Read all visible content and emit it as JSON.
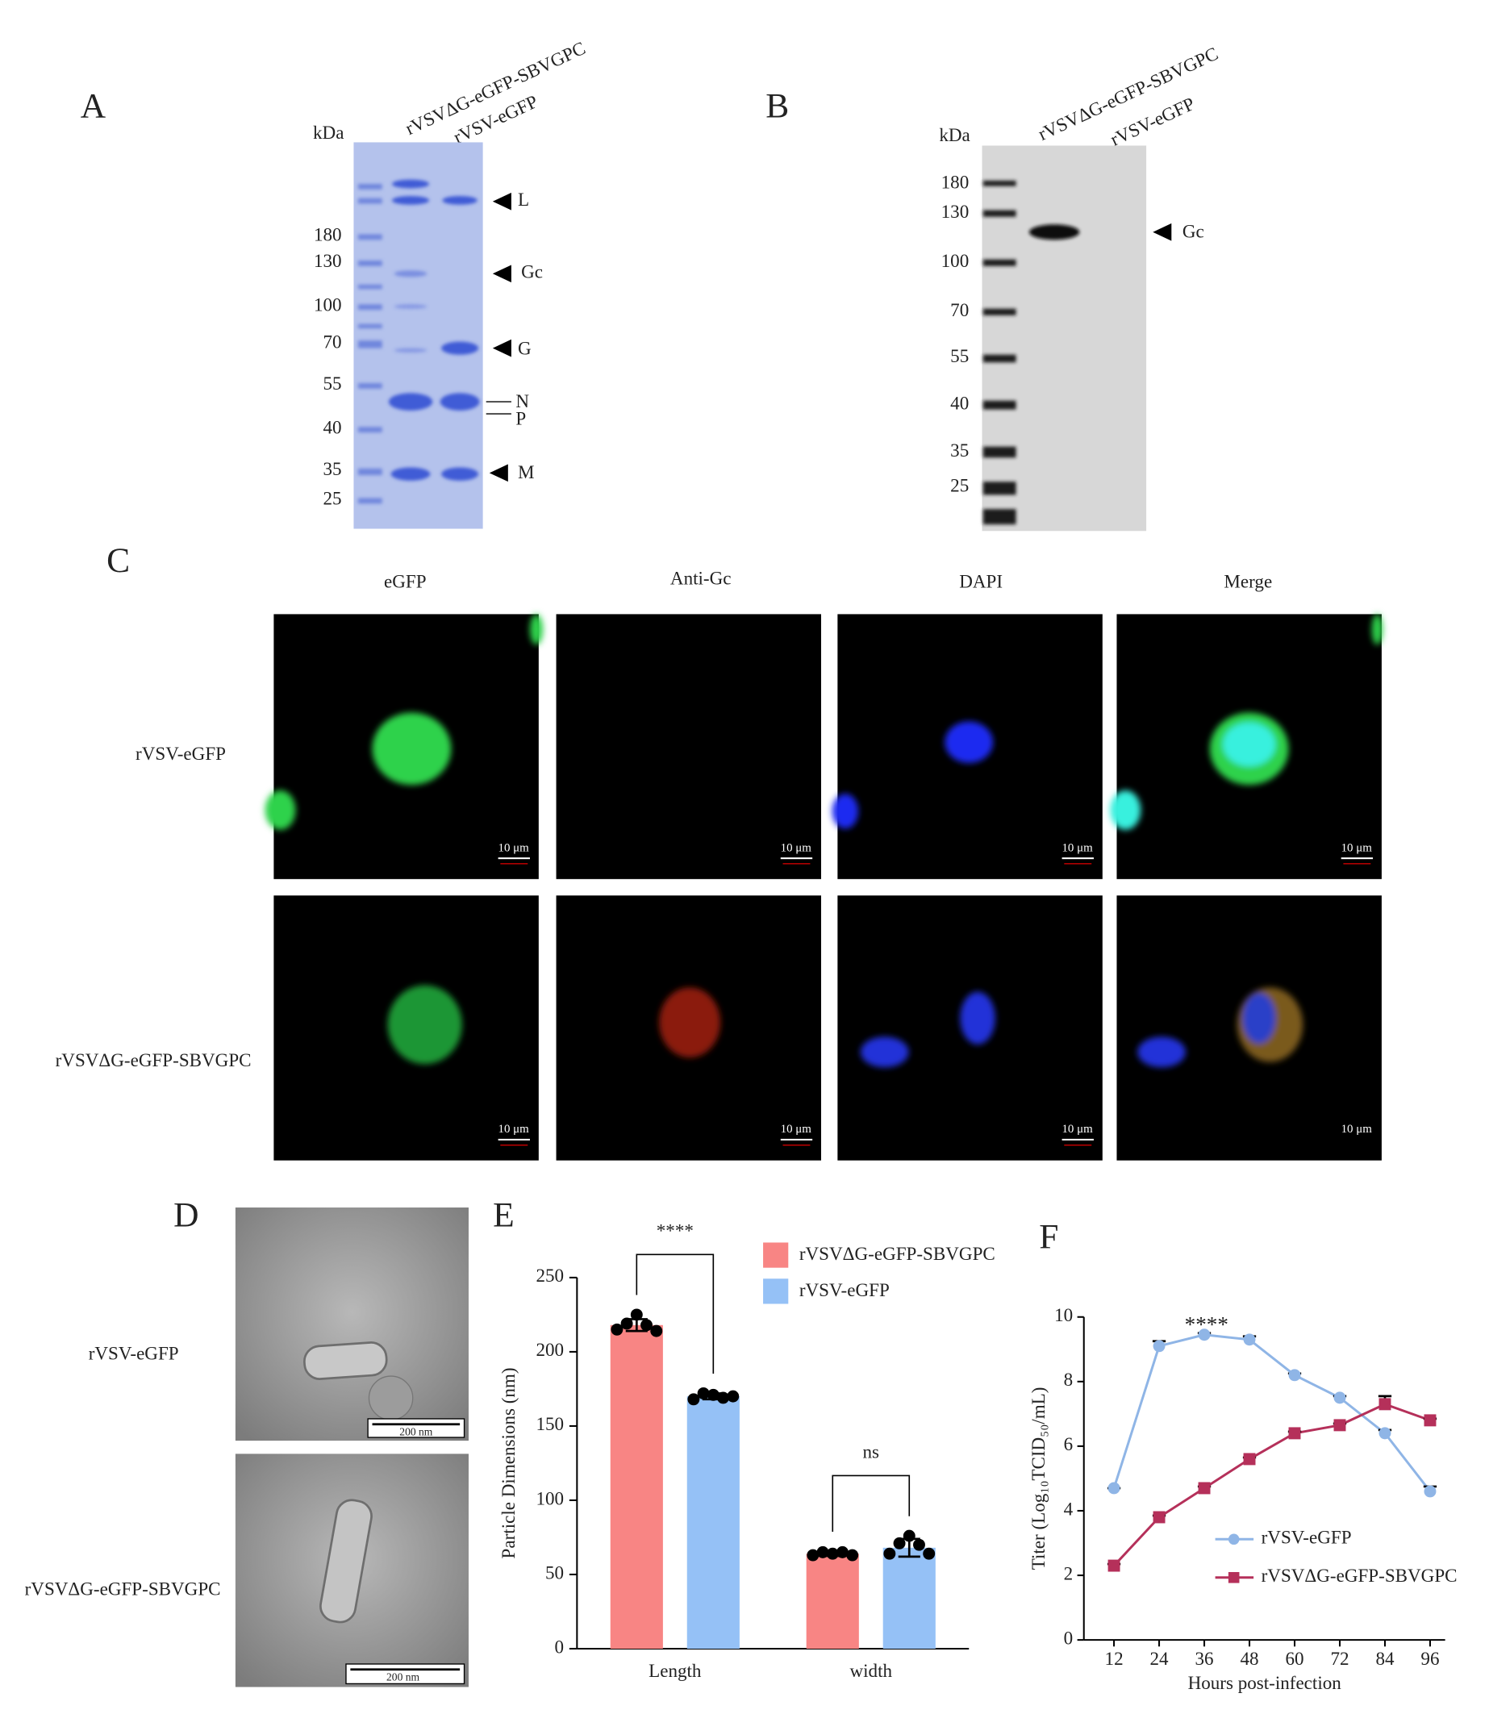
{
  "panel_a": {
    "label": "A",
    "unit": "kDa",
    "lanes": [
      "rVSVΔG-eGFP-SBVGPC",
      "rVSV-eGFP"
    ],
    "markers": [
      180,
      130,
      100,
      70,
      55,
      40,
      35,
      25
    ],
    "bands": [
      "L",
      "Gc",
      "G",
      "N",
      "P",
      "M"
    ]
  },
  "panel_b": {
    "label": "B",
    "unit": "kDa",
    "lanes": [
      "rVSVΔG-eGFP-SBVGPC",
      "rVSV-eGFP"
    ],
    "markers": [
      180,
      130,
      100,
      70,
      55,
      40,
      35,
      25
    ],
    "bands": [
      "Gc"
    ]
  },
  "panel_c": {
    "label": "C",
    "columns": [
      "eGFP",
      "Anti-Gc",
      "DAPI",
      "Merge"
    ],
    "rows": [
      "rVSV-eGFP",
      "rVSVΔG-eGFP-SBVGPC"
    ],
    "scale_bar": "10 μm"
  },
  "panel_d": {
    "label": "D",
    "rows": [
      "rVSV-eGFP",
      "rVSVΔG-eGFP-SBVGPC"
    ],
    "scale_bar": "200 nm"
  },
  "chart_data": [
    {
      "type": "bar",
      "label": "E",
      "ylabel": "Particle Dimensions (nm)",
      "categories": [
        "Length",
        "width"
      ],
      "series": [
        {
          "name": "rVSVΔG-eGFP-SBVGPC",
          "color": "#f88584",
          "values": [
            218,
            64
          ],
          "errors": [
            4,
            1.5
          ],
          "points": [
            [
              215,
              219,
              225,
              218,
              214
            ],
            [
              63,
              65,
              64,
              65,
              63
            ]
          ]
        },
        {
          "name": "rVSV-eGFP",
          "color": "#95c1f6",
          "values": [
            170,
            68
          ],
          "errors": [
            2,
            6
          ],
          "points": [
            [
              168,
              172,
              171,
              169,
              170
            ],
            [
              64,
              71,
              76,
              70,
              64
            ]
          ]
        }
      ],
      "ylim": [
        0,
        250
      ],
      "yticks": [
        0,
        50,
        100,
        150,
        200,
        250
      ],
      "annotations": [
        "****",
        "ns"
      ]
    },
    {
      "type": "line",
      "label": "F",
      "xlabel": "Hours post-infection",
      "ylabel": "Titer (Log₁₀TCID₅₀/mL)",
      "x": [
        12,
        24,
        36,
        48,
        60,
        72,
        84,
        96
      ],
      "xlim": [
        4,
        100
      ],
      "xticks": [
        12,
        24,
        36,
        48,
        60,
        72,
        84,
        96
      ],
      "ylim": [
        0,
        10
      ],
      "yticks": [
        0,
        2,
        4,
        6,
        8,
        10
      ],
      "series": [
        {
          "name": "rVSV-eGFP",
          "color": "#8fb5e6",
          "marker": "circle",
          "values": [
            4.7,
            9.1,
            9.45,
            9.3,
            8.2,
            7.5,
            6.4,
            4.6
          ],
          "errors": [
            0,
            0.15,
            0.05,
            0.1,
            0.05,
            0.05,
            0.1,
            0.15
          ]
        },
        {
          "name": "rVSVΔG-eGFP-SBVGPC",
          "color": "#b5305a",
          "marker": "square",
          "values": [
            2.3,
            3.8,
            4.7,
            5.6,
            6.4,
            6.65,
            7.3,
            6.8
          ],
          "errors": [
            0.05,
            0.05,
            0.05,
            0.05,
            0.05,
            0.05,
            0.25,
            0.05
          ]
        }
      ],
      "annotations": [
        "****"
      ]
    }
  ]
}
